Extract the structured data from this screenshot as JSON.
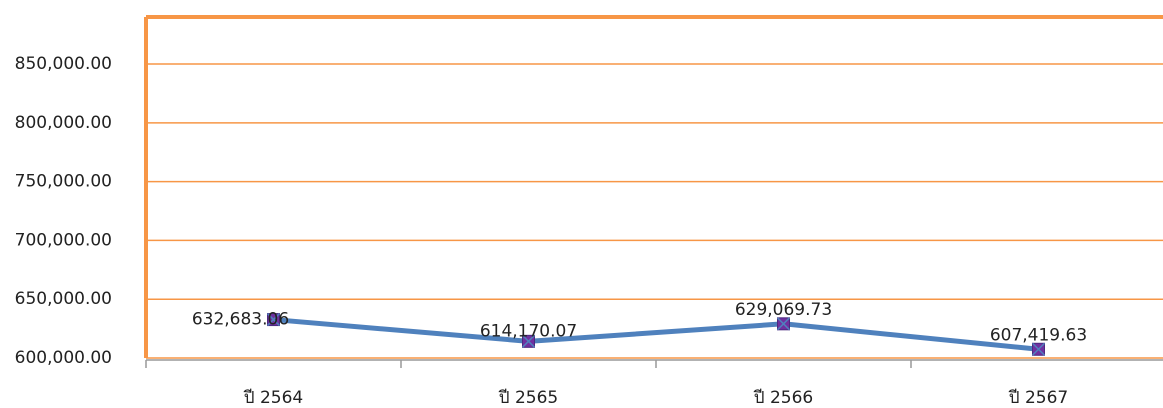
{
  "chart_data": {
    "type": "line",
    "categories": [
      "ปี 2564",
      "ปี 2565",
      "ปี 2566",
      "ปี 2567"
    ],
    "series": [
      {
        "name": "",
        "color": "#4f81bd",
        "marker_color": "#7030a0",
        "values": [
          632683.06,
          614170.07,
          629069.73,
          607419.63
        ],
        "value_labels": [
          "632,683.06",
          "614,170.07",
          "629,069.73",
          "607,419.63"
        ]
      }
    ],
    "ylim": [
      600000,
      890000
    ],
    "yticks": [
      {
        "value": 600000,
        "label": "600,000.00"
      },
      {
        "value": 650000,
        "label": "650,000.00"
      },
      {
        "value": 700000,
        "label": "700,000.00"
      },
      {
        "value": 750000,
        "label": "750,000.00"
      },
      {
        "value": 800000,
        "label": "800,000.00"
      },
      {
        "value": 850000,
        "label": "850,000.00"
      }
    ],
    "grid": true,
    "grid_color": "#f79646",
    "frame_color": "#f79646"
  }
}
